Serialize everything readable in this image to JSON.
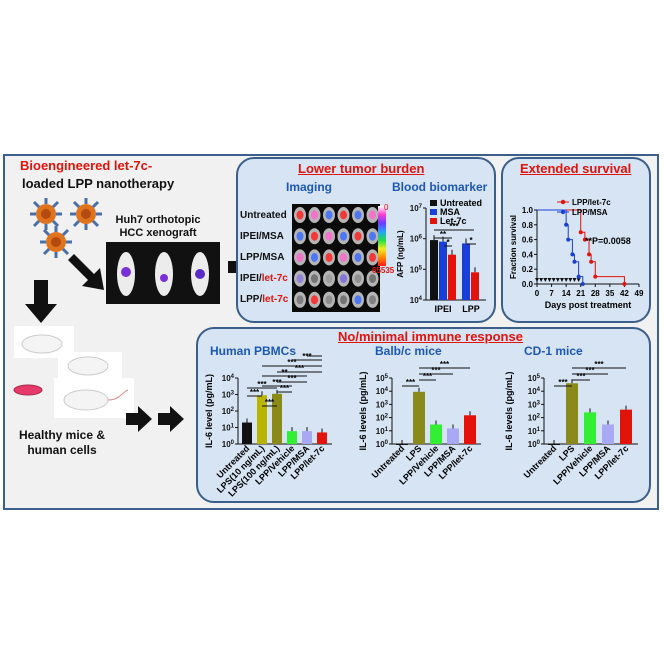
{
  "left": {
    "title_red": "Bioengineered let-7c-",
    "title_black": "loaded LPP nanotherapy",
    "model_line1": "Huh7 orthotopic",
    "model_line2": "HCC xenograft",
    "healthy_line1": "Healthy mice &",
    "healthy_line2": "human cells"
  },
  "tumor": {
    "title": "Lower tumor burden",
    "imaging_label": "Imaging",
    "rows": [
      {
        "pre": "Untreated",
        "red": ""
      },
      {
        "pre": "IPEI/MSA",
        "red": ""
      },
      {
        "pre": "LPP/MSA",
        "red": ""
      },
      {
        "pre": "IPEI/",
        "red": "let-7c"
      },
      {
        "pre": "LPP/",
        "red": "let-7c"
      }
    ],
    "colorbar_top": "0",
    "colorbar_bottom": "65535",
    "biomarker_label": "Blood biomarker"
  },
  "survival": {
    "title": "Extended survival"
  },
  "immune": {
    "title": "No/minimal immune response",
    "panels": [
      {
        "title": "Human PBMCs"
      },
      {
        "title": "Balb/c mice"
      },
      {
        "title": "CD-1 mice"
      }
    ]
  },
  "chart_data": [
    {
      "type": "bar",
      "title": "",
      "ylabel": "AFP (ng/mL)",
      "yscale": "log",
      "ylim": [
        10000,
        10000000
      ],
      "yticks": [
        "10^4",
        "10^5",
        "10^6",
        "10^7"
      ],
      "groups": [
        "IPEI",
        "LPP"
      ],
      "series": [
        {
          "name": "Untreated",
          "color": "#111111",
          "values": [
            900000,
            null
          ]
        },
        {
          "name": "MSA",
          "color": "#1a3fd6",
          "values": [
            800000,
            700000
          ]
        },
        {
          "name": "Let-7c",
          "color": "#e3120b",
          "values": [
            300000,
            80000
          ]
        }
      ],
      "significance": [
        "***",
        "**",
        "*",
        "*"
      ]
    },
    {
      "type": "line",
      "ylabel": "Fraction survival",
      "xlabel": "Days post treatment",
      "xlim": [
        0,
        49
      ],
      "ylim": [
        0,
        1.0
      ],
      "xticks": [
        0,
        7,
        14,
        21,
        28,
        35,
        42,
        49
      ],
      "yticks": [
        0.0,
        0.2,
        0.4,
        0.6,
        0.8,
        1.0
      ],
      "annotation": "**P=0.0058",
      "treatment_days": [
        0,
        2,
        4,
        6,
        8,
        10,
        12,
        14,
        16,
        18,
        20
      ],
      "series": [
        {
          "name": "LPP/let-7c",
          "color": "#e3120b",
          "x": [
            0,
            21,
            23,
            25,
            26,
            28,
            42
          ],
          "y": [
            1.0,
            0.7,
            0.6,
            0.4,
            0.3,
            0.1,
            0.0
          ]
        },
        {
          "name": "LPP/MSA",
          "color": "#1a3fd6",
          "x": [
            0,
            14,
            15,
            17,
            18,
            20,
            22
          ],
          "y": [
            1.0,
            0.8,
            0.6,
            0.4,
            0.3,
            0.1,
            0.0
          ]
        }
      ]
    },
    {
      "type": "bar",
      "title": "Human PBMCs",
      "ylabel": "IL-6 level (pg/mL)",
      "yscale": "log",
      "ylim": [
        1,
        10000
      ],
      "yticks": [
        "10^0",
        "10^1",
        "10^2",
        "10^3",
        "10^4"
      ],
      "categories": [
        "Untreated",
        "LPS(10 ng/mL)",
        "LPS(100 ng/mL)",
        "LPP/Vehicle",
        "LPP/MSA",
        "LPP/let-7c"
      ],
      "colors": [
        "#111111",
        "#b8b400",
        "#8a8a1a",
        "#33ee33",
        "#a8a8f5",
        "#e3120b"
      ],
      "values": [
        20,
        900,
        1100,
        6,
        6,
        5
      ],
      "significance": [
        "***",
        "***",
        "**",
        "***",
        "***",
        "***",
        "***",
        "***",
        "***",
        "***",
        "***"
      ]
    },
    {
      "type": "bar",
      "title": "Balb/c mice",
      "ylabel": "IL-6 levels (pg/mL)",
      "yscale": "log",
      "ylim": [
        1,
        100000
      ],
      "yticks": [
        "10^0",
        "10^1",
        "10^2",
        "10^3",
        "10^4",
        "10^5"
      ],
      "categories": [
        "Untreated",
        "LPS",
        "LPP/Vehicle",
        "LPP/MSA",
        "LPP/let-7c"
      ],
      "colors": [
        "#111111",
        "#8a8a1a",
        "#33ee33",
        "#a8a8f5",
        "#e3120b"
      ],
      "values": [
        1,
        9000,
        30,
        15,
        150
      ],
      "significance": [
        "***",
        "***",
        "***",
        "***"
      ]
    },
    {
      "type": "bar",
      "title": "CD-1 mice",
      "ylabel": "IL-6 levels (pg/mL)",
      "yscale": "log",
      "ylim": [
        1,
        100000
      ],
      "yticks": [
        "10^0",
        "10^1",
        "10^2",
        "10^3",
        "10^4",
        "10^5"
      ],
      "categories": [
        "Untreated",
        "LPS",
        "LPP/Vehicle",
        "LPP/MSA",
        "LPP/let-7c"
      ],
      "colors": [
        "#111111",
        "#8a8a1a",
        "#33ee33",
        "#a8a8f5",
        "#e3120b"
      ],
      "values": [
        1,
        40000,
        250,
        30,
        400
      ],
      "significance": [
        "***",
        "***",
        "***",
        "***"
      ]
    }
  ]
}
